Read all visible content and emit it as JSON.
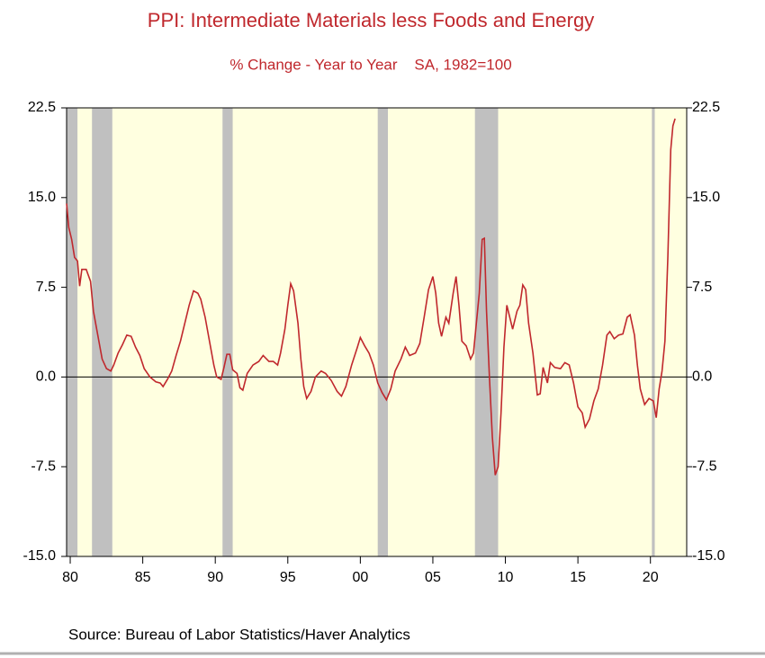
{
  "chart_data": {
    "type": "line",
    "title": "PPI: Intermediate Materials less Foods and Energy",
    "subtitle": "% Change - Year to Year    SA, 1982=100",
    "source": "Source:  Bureau of Labor Statistics/Haver Analytics",
    "background": "#ffffe0",
    "recession_color": "#c0c0c0",
    "recessions": [
      [
        1979.75,
        1980.5
      ],
      [
        1981.5,
        1982.9
      ],
      [
        1990.5,
        1991.2
      ],
      [
        2001.2,
        2001.9
      ],
      [
        2007.9,
        2009.5
      ],
      [
        2020.1,
        2020.3
      ]
    ],
    "xlim": [
      1979.75,
      2022.5
    ],
    "xticks": [
      {
        "value": 1980,
        "label": "80"
      },
      {
        "value": 1985,
        "label": "85"
      },
      {
        "value": 1990,
        "label": "90"
      },
      {
        "value": 1995,
        "label": "95"
      },
      {
        "value": 2000,
        "label": "00"
      },
      {
        "value": 2005,
        "label": "05"
      },
      {
        "value": 2010,
        "label": "10"
      },
      {
        "value": 2015,
        "label": "15"
      },
      {
        "value": 2020,
        "label": "20"
      }
    ],
    "ylim": [
      -15,
      22.5
    ],
    "yticks": [
      {
        "value": -15,
        "label": "-15.0"
      },
      {
        "value": -7.5,
        "label": "-7.5"
      },
      {
        "value": 0,
        "label": "0.0"
      },
      {
        "value": 7.5,
        "label": "7.5"
      },
      {
        "value": 15,
        "label": "15.0"
      },
      {
        "value": 22.5,
        "label": "22.5"
      }
    ],
    "y2lim": [
      -15,
      22.5
    ],
    "y2ticks": [
      {
        "value": -15,
        "label": "-15.0"
      },
      {
        "value": -7.5,
        "label": "-7.5"
      },
      {
        "value": 0,
        "label": "0.0"
      },
      {
        "value": 7.5,
        "label": "7.5"
      },
      {
        "value": 15,
        "label": "15.0"
      },
      {
        "value": 22.5,
        "label": "22.5"
      }
    ],
    "series": [
      {
        "color": "#c0282d",
        "x": [
          1979.75,
          1979.9,
          1980.1,
          1980.3,
          1980.5,
          1980.65,
          1980.8,
          1981.1,
          1981.4,
          1981.6,
          1981.9,
          1982.2,
          1982.5,
          1982.8,
          1983.0,
          1983.3,
          1983.6,
          1983.9,
          1984.2,
          1984.5,
          1984.8,
          1985.1,
          1985.5,
          1985.9,
          1986.2,
          1986.4,
          1986.7,
          1987.0,
          1987.3,
          1987.6,
          1987.9,
          1988.2,
          1988.5,
          1988.8,
          1989.0,
          1989.3,
          1989.6,
          1989.9,
          1990.1,
          1990.4,
          1990.6,
          1990.8,
          1991.0,
          1991.2,
          1991.5,
          1991.7,
          1991.9,
          1992.2,
          1992.6,
          1993.0,
          1993.3,
          1993.7,
          1994.0,
          1994.3,
          1994.5,
          1994.8,
          1995.0,
          1995.2,
          1995.4,
          1995.7,
          1995.9,
          1996.1,
          1996.3,
          1996.6,
          1996.9,
          1997.3,
          1997.6,
          1998.0,
          1998.4,
          1998.7,
          1999.0,
          1999.4,
          1999.8,
          2000.0,
          2000.3,
          2000.6,
          2000.9,
          2001.2,
          2001.5,
          2001.8,
          2002.1,
          2002.4,
          2002.8,
          2003.1,
          2003.4,
          2003.8,
          2004.1,
          2004.4,
          2004.7,
          2005.0,
          2005.2,
          2005.4,
          2005.6,
          2005.9,
          2006.1,
          2006.4,
          2006.6,
          2006.8,
          2007.0,
          2007.3,
          2007.6,
          2007.8,
          2008.0,
          2008.2,
          2008.4,
          2008.55,
          2008.7,
          2008.9,
          2009.1,
          2009.3,
          2009.5,
          2009.7,
          2009.9,
          2010.1,
          2010.3,
          2010.5,
          2010.8,
          2011.0,
          2011.2,
          2011.4,
          2011.6,
          2011.9,
          2012.2,
          2012.4,
          2012.6,
          2012.9,
          2013.1,
          2013.4,
          2013.8,
          2014.1,
          2014.4,
          2014.7,
          2015.0,
          2015.3,
          2015.5,
          2015.8,
          2016.1,
          2016.4,
          2016.7,
          2017.0,
          2017.2,
          2017.5,
          2017.8,
          2018.1,
          2018.4,
          2018.6,
          2018.9,
          2019.1,
          2019.3,
          2019.6,
          2019.9,
          2020.2,
          2020.4,
          2020.6,
          2020.8,
          2021.0,
          2021.2,
          2021.4,
          2021.55,
          2021.7
        ],
        "values": [
          14.5,
          12.5,
          11.5,
          10.0,
          9.7,
          7.6,
          9.0,
          9.0,
          8.0,
          5.5,
          3.5,
          1.5,
          0.7,
          0.5,
          1.0,
          2.0,
          2.7,
          3.5,
          3.4,
          2.5,
          1.8,
          0.7,
          0.0,
          -0.4,
          -0.5,
          -0.8,
          -0.2,
          0.5,
          1.8,
          3.0,
          4.5,
          6.0,
          7.2,
          7.0,
          6.5,
          5.0,
          3.0,
          1.0,
          0.0,
          -0.2,
          0.8,
          1.9,
          1.9,
          0.6,
          0.3,
          -0.9,
          -1.1,
          0.3,
          1.0,
          1.3,
          1.8,
          1.3,
          1.3,
          1.0,
          2.0,
          4.0,
          6.0,
          7.8,
          7.2,
          4.5,
          1.5,
          -0.8,
          -1.8,
          -1.2,
          0.0,
          0.5,
          0.3,
          -0.3,
          -1.2,
          -1.6,
          -0.8,
          1.0,
          2.5,
          3.3,
          2.6,
          2.0,
          1.0,
          -0.5,
          -1.3,
          -1.9,
          -1.0,
          0.5,
          1.5,
          2.5,
          1.8,
          2.0,
          2.8,
          5.0,
          7.3,
          8.4,
          7.0,
          4.5,
          3.4,
          5.0,
          4.5,
          7.0,
          8.4,
          6.0,
          3.0,
          2.6,
          1.5,
          2.0,
          4.5,
          7.0,
          11.5,
          11.6,
          5.5,
          0.0,
          -5.0,
          -8.2,
          -7.5,
          -3.0,
          2.5,
          6.0,
          5.0,
          4.0,
          5.5,
          6.0,
          7.7,
          7.3,
          4.5,
          2.0,
          -1.5,
          -1.4,
          0.8,
          -0.5,
          1.2,
          0.8,
          0.7,
          1.2,
          1.0,
          -0.5,
          -2.5,
          -3.0,
          -4.2,
          -3.5,
          -2.0,
          -1.0,
          1.0,
          3.5,
          3.8,
          3.2,
          3.5,
          3.6,
          5.0,
          5.2,
          3.5,
          1.0,
          -1.0,
          -2.3,
          -1.8,
          -2.0,
          -3.4,
          -1.0,
          0.5,
          3.0,
          10.0,
          19.0,
          21.0,
          21.6
        ]
      }
    ]
  }
}
